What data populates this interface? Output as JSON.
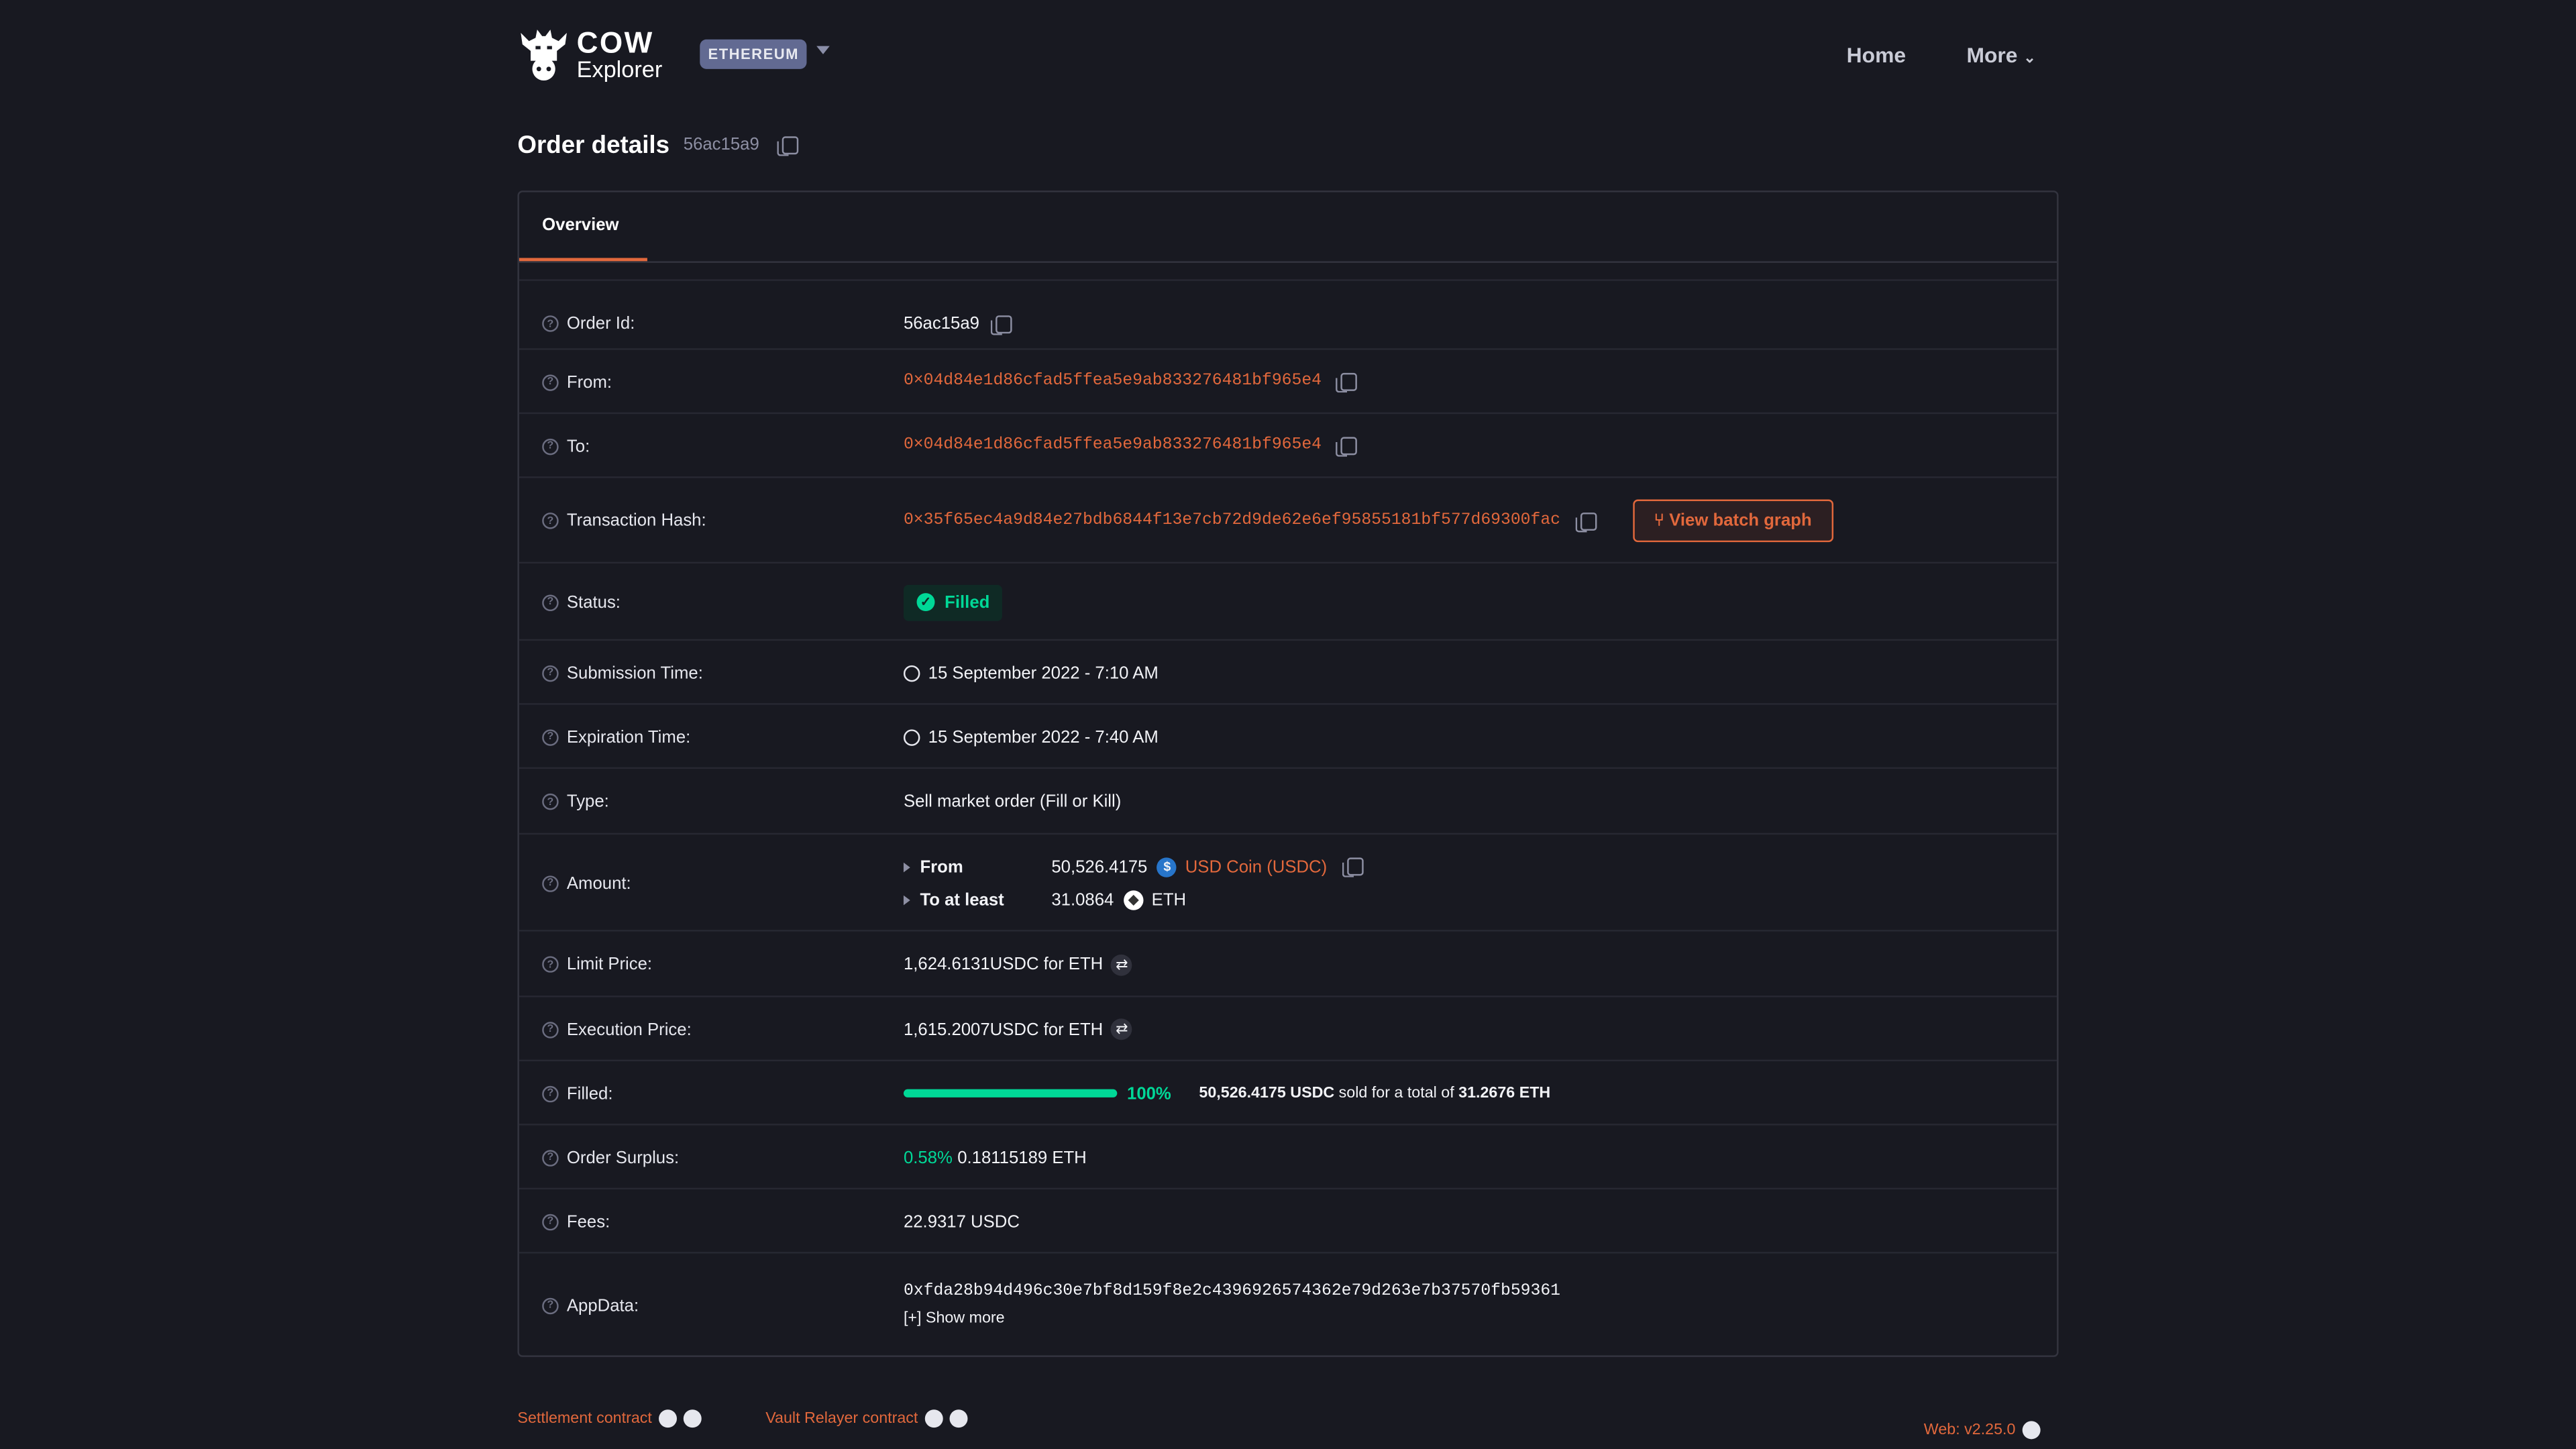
{
  "header": {
    "logo_top": "COW",
    "logo_bottom": "Explorer",
    "network": "ETHEREUM",
    "nav": [
      "Home",
      "More"
    ]
  },
  "page": {
    "title": "Order details",
    "short_id": "56ac15a9"
  },
  "tabs": [
    "Overview"
  ],
  "colors": {
    "accent": "#e2683c",
    "success": "#00d897",
    "background": "#181921"
  },
  "rows": {
    "order_id": {
      "label": "Order Id:",
      "value": "56ac15a9"
    },
    "from": {
      "label": "From:",
      "value": "0×04d84e1d86cfad5ffea5e9ab833276481bf965e4"
    },
    "to": {
      "label": "To:",
      "value": "0×04d84e1d86cfad5ffea5e9ab833276481bf965e4"
    },
    "tx": {
      "label": "Transaction Hash:",
      "value": "0×35f65ec4a9d84e27bdb6844f13e7cb72d9de62e6ef95855181bf577d69300fac",
      "button": "View batch graph"
    },
    "status": {
      "label": "Status:",
      "value": "Filled"
    },
    "submission": {
      "label": "Submission Time:",
      "value": "15 September 2022 - 7:10 AM"
    },
    "expiration": {
      "label": "Expiration Time:",
      "value": "15 September 2022 - 7:40 AM"
    },
    "type": {
      "label": "Type:",
      "value": "Sell market order (Fill or Kill)"
    },
    "amount": {
      "label": "Amount:",
      "from_label": "From",
      "from_value": "50,526.4175",
      "from_token": "USD Coin (USDC)",
      "to_label": "To at least",
      "to_value": "31.0864",
      "to_token": "ETH"
    },
    "limit": {
      "label": "Limit Price:",
      "value": "1,624.6131USDC for ETH"
    },
    "execution": {
      "label": "Execution Price:",
      "value": "1,615.2007USDC for ETH"
    },
    "filled": {
      "label": "Filled:",
      "percent": "100%",
      "progress": 1.0,
      "sold": "50,526.4175 USDC",
      "mid": " sold for a total of ",
      "total": "31.2676 ETH"
    },
    "surplus": {
      "label": "Order Surplus:",
      "percent": "0.58%",
      "value": "0.18115189 ETH"
    },
    "fees": {
      "label": "Fees:",
      "value": "22.9317 USDC"
    },
    "appdata": {
      "label": "AppData:",
      "value": "0xfda28b94d496c30e7bf8d159f8e2c4396926574362e79d263e7b37570fb59361",
      "more": "[+] Show more"
    }
  },
  "footer": {
    "settlement": "Settlement contract",
    "vault": "Vault Relayer contract",
    "version": "Web: v2.25.0"
  }
}
